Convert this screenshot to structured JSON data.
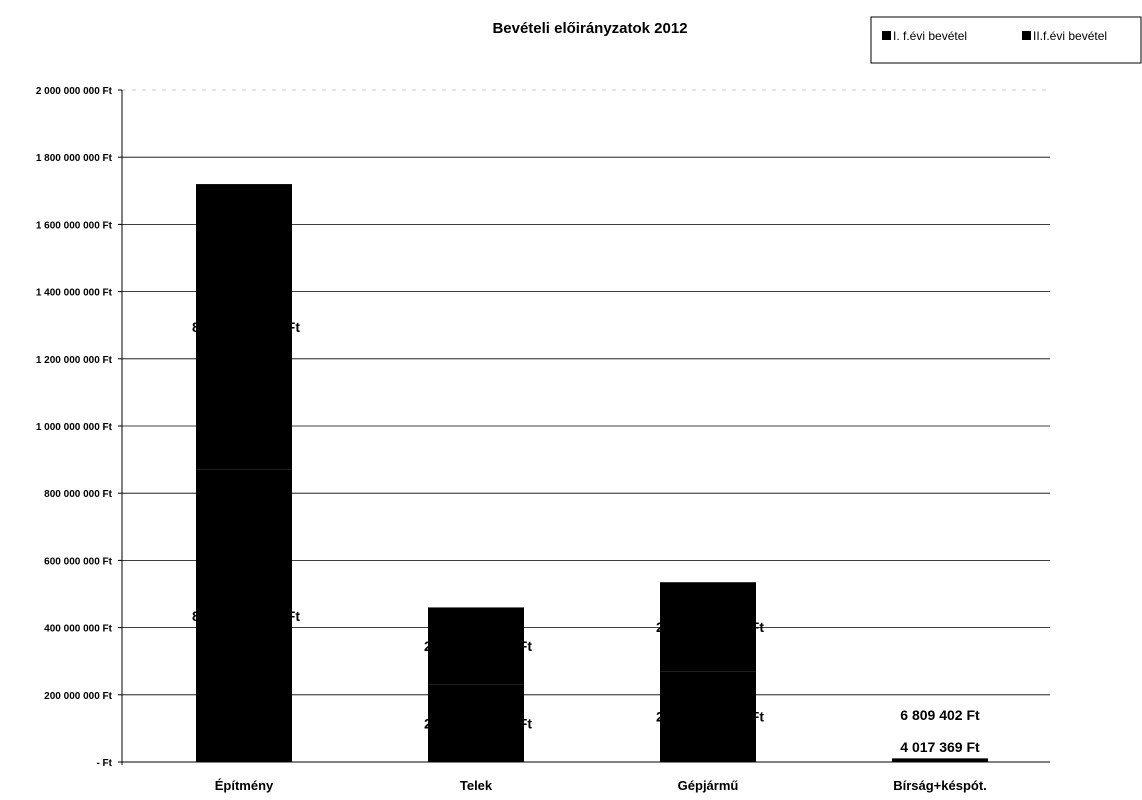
{
  "chart_data": {
    "type": "bar",
    "stacked": true,
    "title": "Bevételi előirányzatok 2012",
    "categories": [
      "Építmény",
      "Telek",
      "Gépjármű",
      "Bírság+késpót."
    ],
    "series": [
      {
        "name": "I. f.évi bevétel",
        "values": [
          870000000,
          230000000,
          270000000,
          4017369
        ],
        "labels": [
          "8",
          "2",
          "2",
          "4 017 369 Ft"
        ],
        "color": "#000000"
      },
      {
        "name": "II.f.évi bevétel",
        "values": [
          850000000,
          230000000,
          265000000,
          6809402
        ],
        "labels": [
          "8",
          "2",
          "2",
          "6 809 402 Ft"
        ],
        "color": "#000000"
      }
    ],
    "label_suffix_partial": "Ft",
    "ylim": [
      0,
      2000000000
    ],
    "yticks": [
      0,
      200000000,
      400000000,
      600000000,
      800000000,
      1000000000,
      1200000000,
      1400000000,
      1600000000,
      1800000000,
      2000000000
    ],
    "ytick_labels": [
      "-   Ft",
      "200 000 000 Ft",
      "400 000 000 Ft",
      "600 000 000 Ft",
      "800 000 000 Ft",
      "1 000 000 000 Ft",
      "1 200 000 000 Ft",
      "1 400 000 000 Ft",
      "1 600 000 000 Ft",
      "1 800 000 000 Ft",
      "2 000 000 000 Ft"
    ],
    "grid": true,
    "legend_position": "top-right",
    "xlabel": "",
    "ylabel": ""
  }
}
